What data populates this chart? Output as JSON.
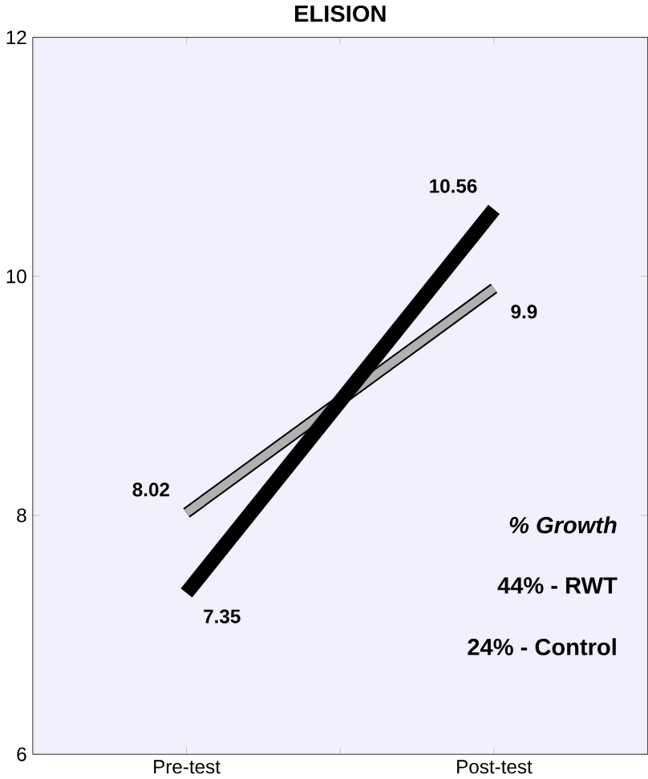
{
  "chart_data": {
    "type": "line",
    "title": "ELISION",
    "categories": [
      "Pre-test",
      "Post-test"
    ],
    "series": [
      {
        "color": "#b0b0b0",
        "values": [
          8.02,
          9.9
        ]
      },
      {
        "color": "#000000",
        "values": [
          7.35,
          10.56
        ]
      }
    ],
    "ylim": [
      6,
      12
    ],
    "yticks": [
      6,
      8,
      10,
      12
    ],
    "data_labels": true,
    "annotations": [
      "% Growth",
      "44% - RWT",
      "24% - Control"
    ]
  }
}
